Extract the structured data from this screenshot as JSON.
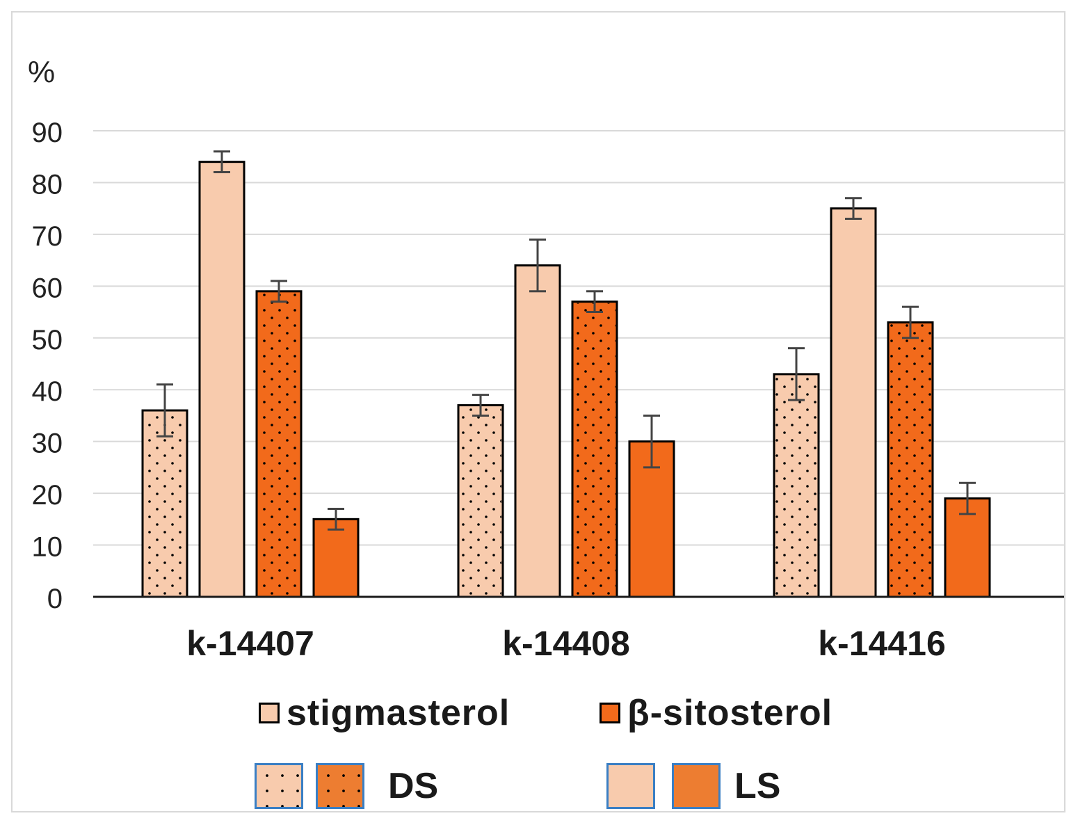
{
  "chart_data": {
    "type": "bar",
    "ylabel": "%",
    "ylim": [
      0,
      90
    ],
    "yticks": [
      0,
      10,
      20,
      30,
      40,
      50,
      60,
      70,
      80,
      90
    ],
    "grid": true,
    "categories": [
      "k-14407",
      "k-14408",
      "k-14416"
    ],
    "series": [
      {
        "name": "stigmasterol DS",
        "compound": "stigmasterol",
        "condition": "DS",
        "color": "#f8cbad",
        "pattern": "dots",
        "values": [
          36,
          37,
          43
        ],
        "errors": [
          5,
          2,
          5
        ]
      },
      {
        "name": "stigmasterol LS",
        "compound": "stigmasterol",
        "condition": "LS",
        "color": "#f8cbad",
        "pattern": "solid",
        "values": [
          84,
          64,
          75
        ],
        "errors": [
          2,
          5,
          2
        ]
      },
      {
        "name": "β-sitosterol DS",
        "compound": "β-sitosterol",
        "condition": "DS",
        "color": "#f26a1b",
        "pattern": "dots",
        "values": [
          59,
          57,
          53
        ],
        "errors": [
          2,
          2,
          3
        ]
      },
      {
        "name": "β-sitosterol LS",
        "compound": "β-sitosterol",
        "condition": "LS",
        "color": "#f26a1b",
        "pattern": "solid",
        "values": [
          15,
          30,
          19
        ],
        "errors": [
          2,
          5,
          3
        ]
      }
    ]
  },
  "legend": {
    "compounds": [
      {
        "label": "stigmasterol",
        "color": "#f8cbad"
      },
      {
        "label": "β-sitosterol",
        "color": "#f26a1b"
      }
    ],
    "conditions": [
      {
        "label": "DS",
        "pattern": "dots",
        "colors": [
          "#f8cbad",
          "#ed7d31"
        ]
      },
      {
        "label": "LS",
        "pattern": "solid",
        "colors": [
          "#f8cbad",
          "#ed7d31"
        ]
      }
    ]
  }
}
